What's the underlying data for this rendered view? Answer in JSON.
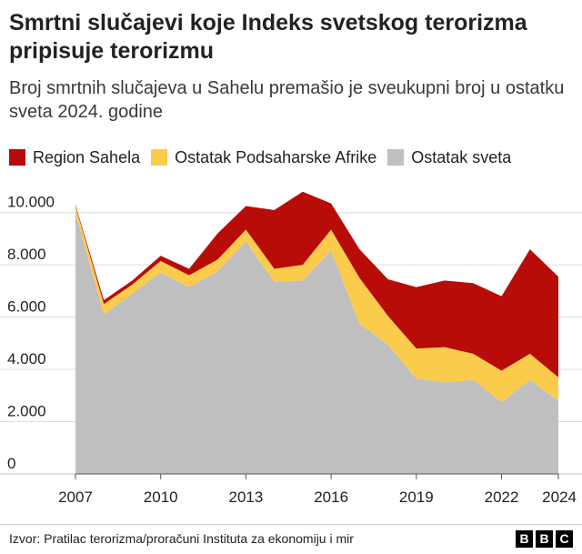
{
  "header": {
    "title": "Smrtni slučajevi koje Indeks svetskog terorizma pripisuje terorizmu",
    "subtitle": "Broj smrtnih slučajeva u Sahelu premašio je sveukupni broj u ostatku sveta 2024. godine"
  },
  "legend": [
    {
      "label": "Region Sahela",
      "color": "#b80c09"
    },
    {
      "label": "Ostatak Podsaharske Afrike",
      "color": "#fbcb4c"
    },
    {
      "label": "Ostatak sveta",
      "color": "#bfbfbf"
    }
  ],
  "chart_data": {
    "type": "area",
    "stacked": true,
    "x": [
      2007,
      2008,
      2009,
      2010,
      2011,
      2012,
      2013,
      2014,
      2015,
      2016,
      2017,
      2018,
      2019,
      2020,
      2021,
      2022,
      2023,
      2024
    ],
    "series": [
      {
        "name": "Ostatak sveta",
        "color": "#bfbfbf",
        "values": [
          10000,
          6100,
          6900,
          7700,
          7150,
          7750,
          8900,
          7350,
          7400,
          8550,
          5750,
          4950,
          3650,
          3500,
          3600,
          2750,
          3600,
          2800
        ]
      },
      {
        "name": "Ostatak Podsaharske Afrike",
        "color": "#fbcb4c",
        "values": [
          250,
          400,
          350,
          450,
          450,
          450,
          450,
          500,
          600,
          800,
          1750,
          1100,
          1150,
          1350,
          1000,
          1200,
          1000,
          900
        ]
      },
      {
        "name": "Region Sahela",
        "color": "#b80c09",
        "values": [
          50,
          150,
          150,
          200,
          250,
          1000,
          900,
          2250,
          2800,
          1000,
          1100,
          1400,
          2350,
          2550,
          2700,
          2850,
          4000,
          3850
        ]
      }
    ],
    "ylim": [
      0,
      11000
    ],
    "y_ticks": [
      0,
      2000,
      4000,
      6000,
      8000,
      10000
    ],
    "y_tick_labels": [
      "0",
      "2.000",
      "4.000",
      "6.000",
      "8.000",
      "10.000"
    ],
    "x_ticks": [
      2007,
      2010,
      2013,
      2016,
      2019,
      2022,
      2024
    ],
    "x_tick_labels": [
      "2007",
      "2010",
      "2013",
      "2016",
      "2019",
      "2022",
      "2024"
    ],
    "grid": true,
    "legend_position": "top-left"
  },
  "footer": {
    "source": "Izvor: Pratilac terorizma/proračuni Instituta za ekonomiju i mir",
    "logo_letters": [
      "B",
      "B",
      "C"
    ]
  }
}
